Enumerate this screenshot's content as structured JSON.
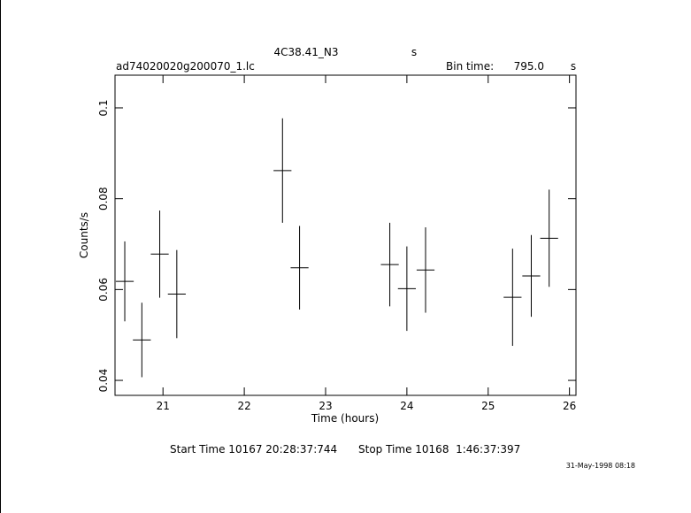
{
  "chart_data": {
    "type": "errorbar",
    "title": "4C38.41_N3",
    "title_unit": "s",
    "subtitle": "ad74020020g200070_1.lc",
    "bin_time_label": "Bin time:",
    "bin_time": "795.0",
    "bin_time_unit": "s",
    "xlabel": "Time (hours)",
    "ylabel": "Counts/s",
    "start_time": "Start Time 10167 20:28:37:744",
    "stop_time": "Stop Time 10168  1:46:37:397",
    "date_stamp": "31-May-1998 08:18",
    "color": "#000000",
    "x": [
      20.53,
      20.74,
      20.96,
      21.17,
      22.47,
      22.68,
      23.79,
      24.0,
      24.23,
      25.3,
      25.53,
      25.75
    ],
    "xerr": [
      0.11,
      0.11,
      0.11,
      0.11,
      0.11,
      0.11,
      0.11,
      0.11,
      0.11,
      0.11,
      0.11,
      0.11
    ],
    "values": [
      0.0618,
      0.0489,
      0.0678,
      0.059,
      0.0862,
      0.0648,
      0.0655,
      0.0602,
      0.0643,
      0.0583,
      0.063,
      0.0713
    ],
    "yerr": [
      0.0088,
      0.0082,
      0.0096,
      0.0097,
      0.0115,
      0.0092,
      0.0092,
      0.0093,
      0.0094,
      0.0107,
      0.009,
      0.0107
    ],
    "xlim": [
      20.41,
      26.08
    ],
    "ylim": [
      0.0367,
      0.1072
    ],
    "xticks": [
      21,
      22,
      23,
      24,
      25,
      26
    ],
    "yticks": [
      0.04,
      0.06,
      0.08,
      0.1
    ]
  }
}
